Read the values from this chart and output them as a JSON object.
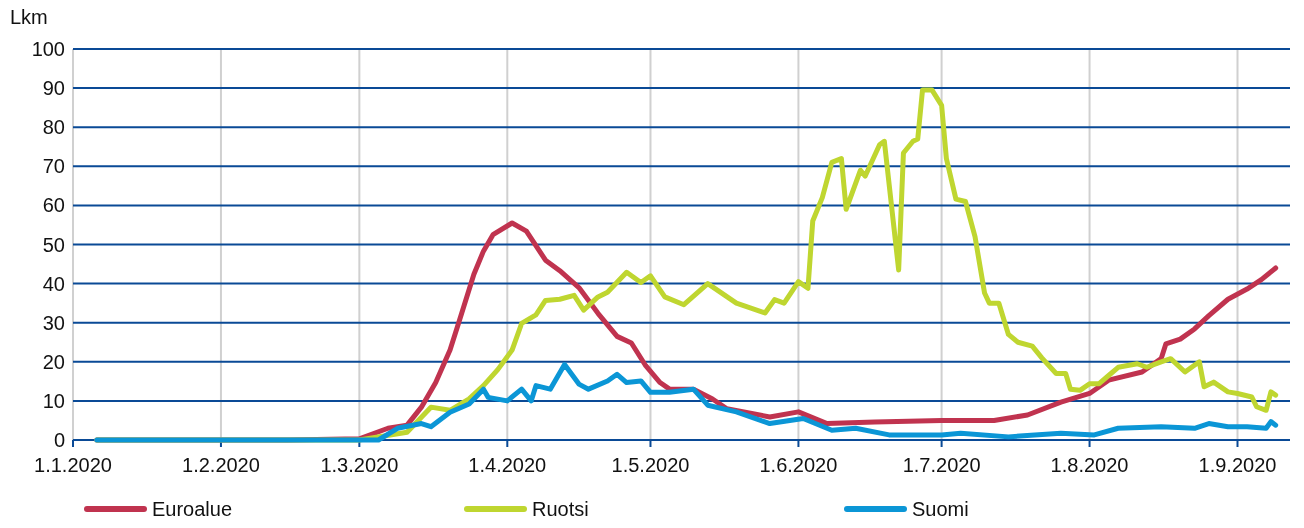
{
  "chart_data": {
    "type": "line",
    "ylabel": "Lkm",
    "xlim": [
      "2020-01-01",
      "2020-09-12"
    ],
    "ylim": [
      0,
      100
    ],
    "yticks": [
      0,
      10,
      20,
      30,
      40,
      50,
      60,
      70,
      80,
      90,
      100
    ],
    "xticks": [
      {
        "value": "2020-01-01",
        "label": "1.1.2020"
      },
      {
        "value": "2020-02-01",
        "label": "1.2.2020"
      },
      {
        "value": "2020-03-01",
        "label": "1.3.2020"
      },
      {
        "value": "2020-04-01",
        "label": "1.4.2020"
      },
      {
        "value": "2020-05-01",
        "label": "1.5.2020"
      },
      {
        "value": "2020-06-01",
        "label": "1.6.2020"
      },
      {
        "value": "2020-07-01",
        "label": "1.7.2020"
      },
      {
        "value": "2020-08-01",
        "label": "1.8.2020"
      },
      {
        "value": "2020-09-01",
        "label": "1.9.2020"
      }
    ],
    "grid": true,
    "legend": "bottom",
    "marker": "none",
    "line_style": "solid",
    "series": [
      {
        "name": "Euroalue",
        "color": "#c0334f",
        "x": [
          "2020-01-06",
          "2020-02-15",
          "2020-03-01",
          "2020-03-07",
          "2020-03-11",
          "2020-03-14",
          "2020-03-17",
          "2020-03-20",
          "2020-03-22",
          "2020-03-25",
          "2020-03-27",
          "2020-03-29",
          "2020-04-02",
          "2020-04-05",
          "2020-04-09",
          "2020-04-12",
          "2020-04-16",
          "2020-04-20",
          "2020-04-24",
          "2020-04-27",
          "2020-04-30",
          "2020-05-03",
          "2020-05-05",
          "2020-05-10",
          "2020-05-14",
          "2020-05-17",
          "2020-05-26",
          "2020-06-01",
          "2020-06-07",
          "2020-06-17",
          "2020-07-01",
          "2020-07-12",
          "2020-07-19",
          "2020-07-26",
          "2020-08-01",
          "2020-08-05",
          "2020-08-12",
          "2020-08-16",
          "2020-08-17",
          "2020-08-20",
          "2020-08-23",
          "2020-08-26",
          "2020-08-30",
          "2020-09-03",
          "2020-09-06",
          "2020-09-09"
        ],
        "values": [
          0,
          0,
          0.3,
          3,
          3.8,
          8.4,
          14.7,
          23,
          30.7,
          42.4,
          48.3,
          52.5,
          55.5,
          53.4,
          46,
          43.3,
          39,
          32.4,
          26.5,
          24.8,
          19,
          14.7,
          13,
          13,
          10.5,
          8,
          5.9,
          7.2,
          4.2,
          4.6,
          5,
          5,
          6.4,
          9.7,
          11.9,
          15.3,
          17.4,
          20.8,
          24.6,
          25.8,
          28.4,
          31.8,
          36,
          38.6,
          41,
          44
        ]
      },
      {
        "name": "Ruotsi",
        "color": "#bfd630",
        "x": [
          "2020-01-06",
          "2020-03-01",
          "2020-03-11",
          "2020-03-16",
          "2020-03-20",
          "2020-03-24",
          "2020-03-27",
          "2020-03-30",
          "2020-04-02",
          "2020-04-04",
          "2020-04-07",
          "2020-04-09",
          "2020-04-12",
          "2020-04-15",
          "2020-04-17",
          "2020-04-20",
          "2020-04-22",
          "2020-04-26",
          "2020-04-29",
          "2020-05-01",
          "2020-05-04",
          "2020-05-08",
          "2020-05-13",
          "2020-05-19",
          "2020-05-25",
          "2020-05-27",
          "2020-05-29",
          "2020-06-01",
          "2020-06-03",
          "2020-06-04",
          "2020-06-06",
          "2020-06-08",
          "2020-06-10",
          "2020-06-11",
          "2020-06-14",
          "2020-06-15",
          "2020-06-18",
          "2020-06-19",
          "2020-06-22",
          "2020-06-23",
          "2020-06-25",
          "2020-06-26",
          "2020-06-27",
          "2020-06-29",
          "2020-07-01",
          "2020-07-02",
          "2020-07-04",
          "2020-07-06",
          "2020-07-08",
          "2020-07-10",
          "2020-07-11",
          "2020-07-13",
          "2020-07-15",
          "2020-07-17",
          "2020-07-20",
          "2020-07-22",
          "2020-07-25",
          "2020-07-27",
          "2020-07-28",
          "2020-07-30",
          "2020-08-01",
          "2020-08-03",
          "2020-08-05",
          "2020-08-07",
          "2020-08-11",
          "2020-08-13",
          "2020-08-16",
          "2020-08-18",
          "2020-08-21",
          "2020-08-24",
          "2020-08-25",
          "2020-08-27",
          "2020-08-30",
          "2020-09-01",
          "2020-09-04",
          "2020-09-05",
          "2020-09-07",
          "2020-09-08",
          "2020-09-09"
        ],
        "values": [
          0,
          0,
          2,
          8.4,
          7.6,
          10.5,
          13.9,
          18,
          23,
          29.8,
          32,
          35.7,
          36,
          37,
          33.2,
          36.6,
          37.8,
          42.9,
          40.3,
          42,
          36.6,
          34.6,
          40,
          35,
          32.5,
          35.9,
          35,
          40.5,
          38.8,
          56,
          62,
          71,
          72,
          59,
          69,
          67.5,
          75.5,
          76.4,
          43.5,
          73.4,
          76.4,
          77,
          89.5,
          89.5,
          85.6,
          72,
          61.6,
          61,
          52,
          37.6,
          35,
          35,
          27,
          25,
          24,
          21,
          17,
          17,
          13,
          12.7,
          14.4,
          14.4,
          16.5,
          18.6,
          19.5,
          18.6,
          20,
          20.8,
          17.4,
          20,
          13.6,
          14.8,
          12.3,
          11.9,
          11,
          8.5,
          7.6,
          12.3,
          11.5
        ]
      },
      {
        "name": "Suomi",
        "color": "#0b96d6",
        "x": [
          "2020-01-06",
          "2020-03-05",
          "2020-03-09",
          "2020-03-14",
          "2020-03-16",
          "2020-03-20",
          "2020-03-24",
          "2020-03-27",
          "2020-03-28",
          "2020-04-01",
          "2020-04-04",
          "2020-04-06",
          "2020-04-07",
          "2020-04-10",
          "2020-04-13",
          "2020-04-16",
          "2020-04-18",
          "2020-04-22",
          "2020-04-24",
          "2020-04-26",
          "2020-04-29",
          "2020-05-01",
          "2020-05-05",
          "2020-05-10",
          "2020-05-13",
          "2020-05-19",
          "2020-05-26",
          "2020-06-02",
          "2020-06-08",
          "2020-06-13",
          "2020-06-20",
          "2020-07-01",
          "2020-07-05",
          "2020-07-15",
          "2020-07-26",
          "2020-08-02",
          "2020-08-07",
          "2020-08-16",
          "2020-08-23",
          "2020-08-26",
          "2020-08-30",
          "2020-09-03",
          "2020-09-07",
          "2020-09-08",
          "2020-09-09"
        ],
        "values": [
          0,
          0,
          3,
          4.2,
          3.4,
          7.1,
          9.2,
          13,
          10.9,
          10,
          13,
          10,
          13.9,
          13,
          19.3,
          14.3,
          13,
          15.1,
          16.8,
          14.7,
          15.1,
          12.2,
          12.2,
          13,
          8.9,
          7.2,
          4.2,
          5.5,
          2.5,
          3,
          1.3,
          1.3,
          1.7,
          0.8,
          1.7,
          1.3,
          3,
          3.4,
          3,
          4.2,
          3.4,
          3.4,
          3,
          4.7,
          3.8
        ]
      }
    ]
  }
}
